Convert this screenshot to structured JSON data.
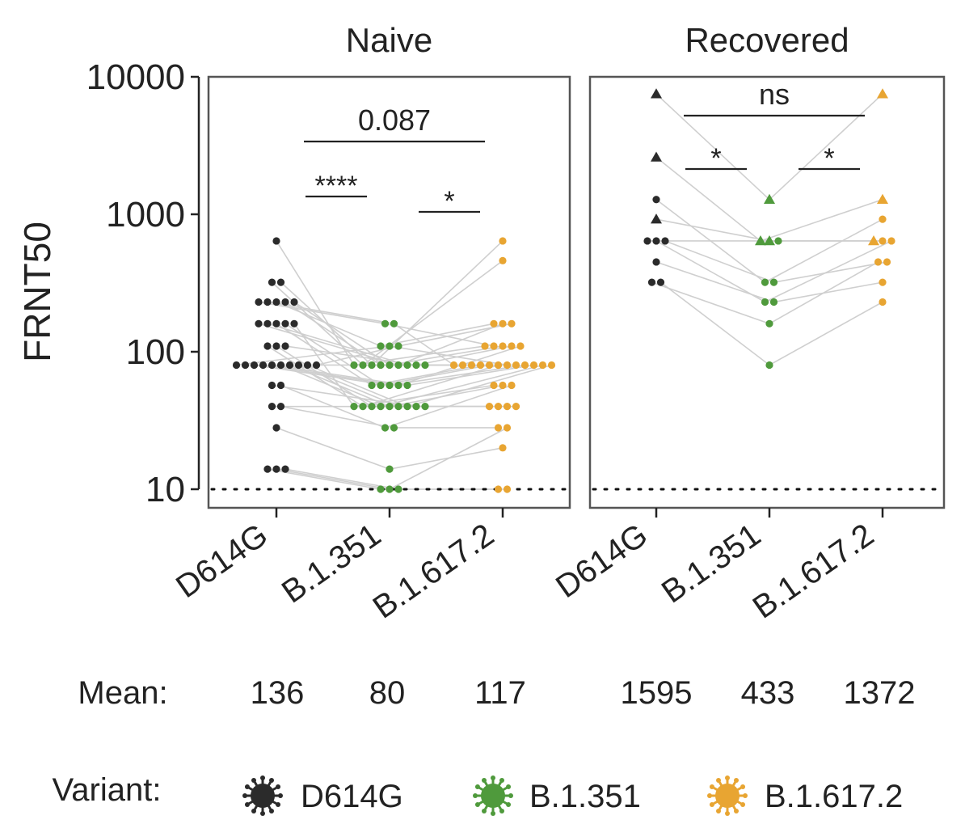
{
  "chart_data": {
    "type": "scatter",
    "scale": "log",
    "ylabel": "FRNT50",
    "ylim": [
      7,
      10000
    ],
    "yticks": [
      10,
      100,
      1000,
      10000
    ],
    "ytick_labels": [
      "10",
      "100",
      "1000",
      "10000"
    ],
    "limit_of_detection": 10,
    "categories": [
      "D614G",
      "B.1.351",
      "B.1.617.2"
    ],
    "colors": {
      "D614G": "#2b2b2b",
      "B.1.351": "#4f9a3c",
      "B.1.617.2": "#e8a532"
    },
    "panels": [
      {
        "title": "Naive",
        "marker": "circle",
        "pairs": [
          [
            640,
            80,
            110
          ],
          [
            320,
            80,
            460
          ],
          [
            320,
            80,
            640
          ],
          [
            230,
            160,
            110
          ],
          [
            230,
            160,
            80
          ],
          [
            230,
            110,
            160
          ],
          [
            230,
            80,
            80
          ],
          [
            230,
            80,
            110
          ],
          [
            160,
            80,
            160
          ],
          [
            160,
            80,
            80
          ],
          [
            160,
            57,
            80
          ],
          [
            160,
            57,
            80
          ],
          [
            160,
            40,
            57
          ],
          [
            110,
            40,
            80
          ],
          [
            110,
            40,
            40
          ],
          [
            110,
            80,
            110
          ],
          [
            80,
            110,
            80
          ],
          [
            80,
            80,
            80
          ],
          [
            80,
            57,
            80
          ],
          [
            80,
            57,
            110
          ],
          [
            80,
            57,
            80
          ],
          [
            80,
            40,
            80
          ],
          [
            80,
            40,
            57
          ],
          [
            80,
            40,
            40
          ],
          [
            80,
            40,
            80
          ],
          [
            80,
            110,
            160
          ],
          [
            57,
            40,
            40
          ],
          [
            57,
            28,
            57
          ],
          [
            40,
            40,
            40
          ],
          [
            40,
            28,
            28
          ],
          [
            28,
            14,
            20
          ],
          [
            14,
            10,
            10
          ],
          [
            14,
            10,
            28
          ],
          [
            14,
            10,
            10
          ]
        ],
        "means": [
          "136",
          "80",
          "117"
        ],
        "comparisons": [
          {
            "from": "D614G",
            "to": "B.1.351",
            "label": "****"
          },
          {
            "from": "B.1.351",
            "to": "B.1.617.2",
            "label": "*"
          },
          {
            "from": "D614G",
            "to": "B.1.617.2",
            "label": "0.087"
          }
        ]
      },
      {
        "title": "Recovered",
        "pairs": [
          {
            "marker": "triangle",
            "values": [
              7500,
              1280,
              7500
            ]
          },
          {
            "marker": "triangle",
            "values": [
              2600,
              640,
              1280
            ]
          },
          {
            "marker": "triangle",
            "values": [
              920,
              640,
              640
            ]
          },
          {
            "marker": "circle",
            "values": [
              1280,
              320,
              920
            ]
          },
          {
            "marker": "circle",
            "values": [
              640,
              640,
              640
            ]
          },
          {
            "marker": "circle",
            "values": [
              640,
              230,
              640
            ]
          },
          {
            "marker": "circle",
            "values": [
              450,
              230,
              320
            ]
          },
          {
            "marker": "circle",
            "values": [
              320,
              160,
              450
            ]
          },
          {
            "marker": "circle",
            "values": [
              320,
              80,
              230
            ]
          },
          {
            "marker": "circle",
            "values": [
              640,
              320,
              450
            ]
          }
        ],
        "means": [
          "1595",
          "433",
          "1372"
        ],
        "comparisons": [
          {
            "from": "D614G",
            "to": "B.1.351",
            "label": "*"
          },
          {
            "from": "B.1.351",
            "to": "B.1.617.2",
            "label": "*"
          },
          {
            "from": "D614G",
            "to": "B.1.617.2",
            "label": "ns"
          }
        ]
      }
    ],
    "mean_label": "Mean:",
    "legend": {
      "title": "Variant:",
      "entries": [
        "D614G",
        "B.1.351",
        "B.1.617.2"
      ],
      "icons": [
        "virus-icon-d614g",
        "virus-icon-b1351",
        "virus-icon-b16172"
      ]
    }
  }
}
